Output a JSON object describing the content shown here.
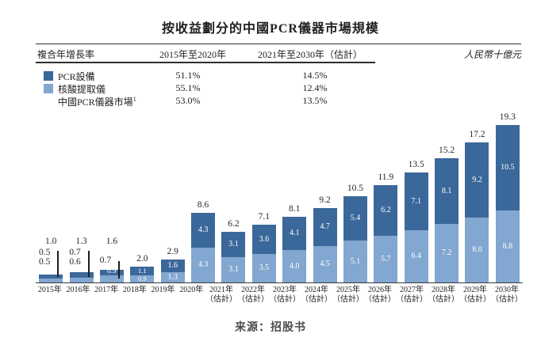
{
  "title": "按收益劃分的中國PCR儀器市場規模",
  "table": {
    "col1_header": "複合年增長率",
    "col2_header": "2015年至2020年",
    "col3_header": "2021年至2030年（估計）",
    "unit_label": "人民幣十億元",
    "rows": [
      {
        "label": "PCR設備",
        "footnote": "",
        "cagr_2015_2020": "51.1%",
        "cagr_2021_2030": "14.5%"
      },
      {
        "label": "核酸提取儀",
        "footnote": "",
        "cagr_2015_2020": "55.1%",
        "cagr_2021_2030": "12.4%"
      },
      {
        "label": "中國PCR儀器市場",
        "footnote": "1",
        "cagr_2015_2020": "53.0%",
        "cagr_2021_2030": "13.5%"
      }
    ]
  },
  "chart_data": {
    "type": "bar",
    "stacked": true,
    "title": "按收益劃分的中國PCR儀器市場規模",
    "ylabel": "人民幣十億元",
    "xlabel": "",
    "grid": false,
    "legend_position": "top-left-table",
    "categories": [
      {
        "label": "2015年",
        "sublabel": ""
      },
      {
        "label": "2016年",
        "sublabel": ""
      },
      {
        "label": "2017年",
        "sublabel": ""
      },
      {
        "label": "2018年",
        "sublabel": ""
      },
      {
        "label": "2019年",
        "sublabel": ""
      },
      {
        "label": "2020年",
        "sublabel": ""
      },
      {
        "label": "2021年",
        "sublabel": "（估計）"
      },
      {
        "label": "2022年",
        "sublabel": "（估計）"
      },
      {
        "label": "2023年",
        "sublabel": "（估計）"
      },
      {
        "label": "2024年",
        "sublabel": "（估計）"
      },
      {
        "label": "2025年",
        "sublabel": "（估計）"
      },
      {
        "label": "2026年",
        "sublabel": "（估計）"
      },
      {
        "label": "2027年",
        "sublabel": "（估計）"
      },
      {
        "label": "2028年",
        "sublabel": "（估計）"
      },
      {
        "label": "2029年",
        "sublabel": "（估計）"
      },
      {
        "label": "2030年",
        "sublabel": "（估計）"
      }
    ],
    "series": [
      {
        "name": "PCR設備",
        "color": "#3b689a",
        "values": [
          "0.5",
          "0.7",
          "0.7",
          "1.1",
          "1.6",
          "4.3",
          "3.1",
          "3.6",
          "4.1",
          "4.7",
          "5.4",
          "6.2",
          "7.1",
          "8.1",
          "9.2",
          "10.5"
        ]
      },
      {
        "name": "核酸提取儀",
        "color": "#82a7d0",
        "values": [
          "0.5",
          "0.6",
          "0.9",
          "0.9",
          "1.3",
          "4.3",
          "3.1",
          "3.5",
          "4.0",
          "4.5",
          "5.1",
          "5.7",
          "6.4",
          "7.2",
          "8.0",
          "8.8"
        ]
      }
    ],
    "totals": [
      "1.0",
      "1.3",
      "1.6",
      "2.0",
      "2.9",
      "8.6",
      "6.2",
      "7.1",
      "8.1",
      "9.2",
      "10.5",
      "11.9",
      "13.5",
      "15.2",
      "17.2",
      "19.3"
    ]
  },
  "source": "来源：招股书"
}
